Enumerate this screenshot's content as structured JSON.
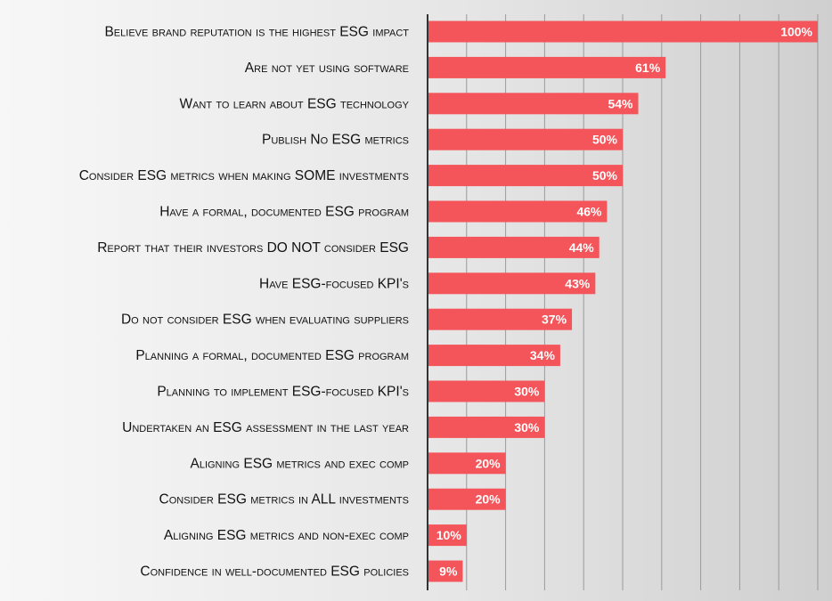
{
  "colors": {
    "bar": "#f4555a",
    "gridline": "#9a9a9a",
    "axis": "#333333",
    "label_text": "#111111",
    "value_text": "#ffffff"
  },
  "chart_data": {
    "type": "bar",
    "orientation": "horizontal",
    "title": "",
    "xlabel": "",
    "ylabel": "",
    "xlim": [
      0,
      100
    ],
    "grid": true,
    "legend": "none",
    "categories": [
      "Believe brand reputation is the highest ESG impact",
      "Are not yet using software",
      "Want to learn about ESG technology",
      "Publish No ESG metrics",
      "Consider ESG metrics when making SOME investments",
      "Have a formal, documented ESG program",
      "Report that their investors DO NOT consider ESG",
      "Have ESG-focused KPI's",
      "Do not consider ESG when evaluating suppliers",
      "Planning a formal, documented ESG program",
      "Planning to implement ESG-focused KPI's",
      "Undertaken an ESG assessment in the last year",
      "Aligning ESG metrics and exec comp",
      "Consider ESG metrics in ALL investments",
      "Aligning ESG metrics and non-exec comp",
      "Confidence in well-documented ESG policies"
    ],
    "values": [
      100,
      61,
      54,
      50,
      50,
      46,
      44,
      43,
      37,
      34,
      30,
      30,
      20,
      20,
      10,
      9
    ],
    "value_labels": [
      "100%",
      "61%",
      "54%",
      "50%",
      "50%",
      "46%",
      "44%",
      "43%",
      "37%",
      "34%",
      "30%",
      "30%",
      "20%",
      "20%",
      "10%",
      "9%"
    ]
  }
}
